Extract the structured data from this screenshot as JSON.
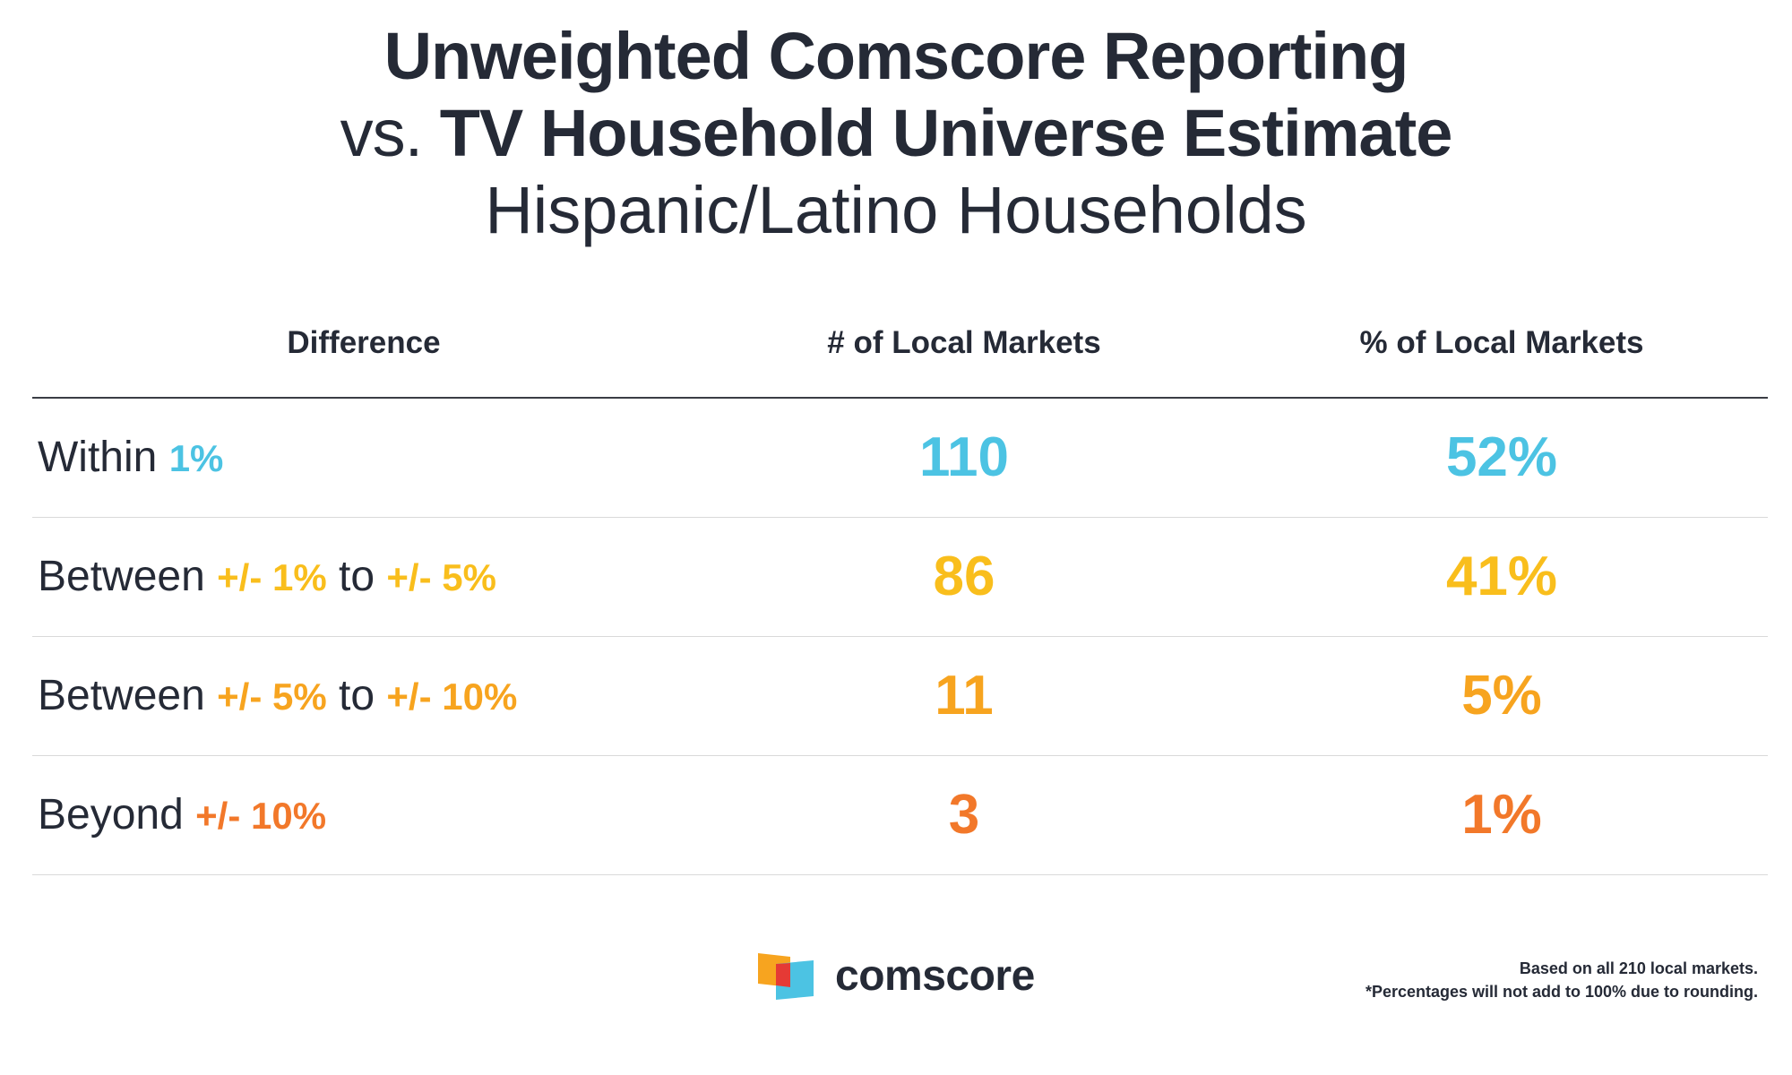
{
  "header": {
    "title_line1": "Unweighted Comscore Reporting",
    "title_line2_prefix": "vs.",
    "title_line2_bold": "TV Household Universe Estimate",
    "subtitle": "Hispanic/Latino Households"
  },
  "chart_data": {
    "type": "table",
    "title": "Unweighted Comscore Reporting vs. TV Household Universe Estimate",
    "subtitle": "Hispanic/Latino Households",
    "columns": [
      "Difference",
      "# of Local Markets",
      "% of Local Markets"
    ],
    "rows": [
      {
        "label_parts": [
          {
            "text": "Within ",
            "highlight": false
          },
          {
            "text": "1%",
            "highlight": true
          }
        ],
        "count": "110",
        "percent": "52%",
        "color": "#4cc3e3"
      },
      {
        "label_parts": [
          {
            "text": "Between ",
            "highlight": false
          },
          {
            "text": "+/- 1%",
            "highlight": true
          },
          {
            "text": " to ",
            "highlight": false
          },
          {
            "text": "+/- 5%",
            "highlight": true
          }
        ],
        "count": "86",
        "percent": "41%",
        "color": "#f9be1c"
      },
      {
        "label_parts": [
          {
            "text": "Between ",
            "highlight": false
          },
          {
            "text": "+/- 5%",
            "highlight": true
          },
          {
            "text": " to ",
            "highlight": false
          },
          {
            "text": "+/- 10%",
            "highlight": true
          }
        ],
        "count": "11",
        "percent": "5%",
        "color": "#f7a41f"
      },
      {
        "label_parts": [
          {
            "text": "Beyond ",
            "highlight": false
          },
          {
            "text": "+/- 10%",
            "highlight": true
          }
        ],
        "count": "3",
        "percent": "1%",
        "color": "#f2782a"
      }
    ]
  },
  "logo": {
    "text": "comscore",
    "icon": "comscore-logo-icon",
    "colors": [
      "#f7a41f",
      "#4cc3e3",
      "#e53a35"
    ]
  },
  "footnote": {
    "line1": "Based on all 210 local markets.",
    "line2": "*Percentages will not add to 100% due to rounding."
  }
}
